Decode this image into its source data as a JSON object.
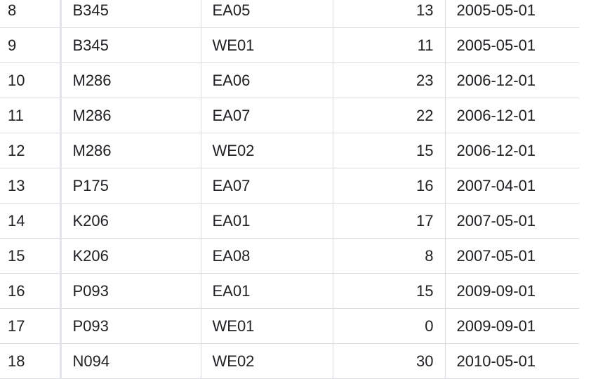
{
  "table": {
    "rows": [
      {
        "index": "8",
        "code": "B345",
        "region": "EA05",
        "qty": "13",
        "date": "2005-05-01"
      },
      {
        "index": "9",
        "code": "B345",
        "region": "WE01",
        "qty": "11",
        "date": "2005-05-01"
      },
      {
        "index": "10",
        "code": "M286",
        "region": "EA06",
        "qty": "23",
        "date": "2006-12-01"
      },
      {
        "index": "11",
        "code": "M286",
        "region": "EA07",
        "qty": "22",
        "date": "2006-12-01"
      },
      {
        "index": "12",
        "code": "M286",
        "region": "WE02",
        "qty": "15",
        "date": "2006-12-01"
      },
      {
        "index": "13",
        "code": "P175",
        "region": "EA07",
        "qty": "16",
        "date": "2007-04-01"
      },
      {
        "index": "14",
        "code": "K206",
        "region": "EA01",
        "qty": "17",
        "date": "2007-05-01"
      },
      {
        "index": "15",
        "code": "K206",
        "region": "EA08",
        "qty": "8",
        "date": "2007-05-01"
      },
      {
        "index": "16",
        "code": "P093",
        "region": "EA01",
        "qty": "15",
        "date": "2009-09-01"
      },
      {
        "index": "17",
        "code": "P093",
        "region": "WE01",
        "qty": "0",
        "date": "2009-09-01"
      },
      {
        "index": "18",
        "code": "N094",
        "region": "WE02",
        "qty": "30",
        "date": "2010-05-01"
      }
    ]
  }
}
